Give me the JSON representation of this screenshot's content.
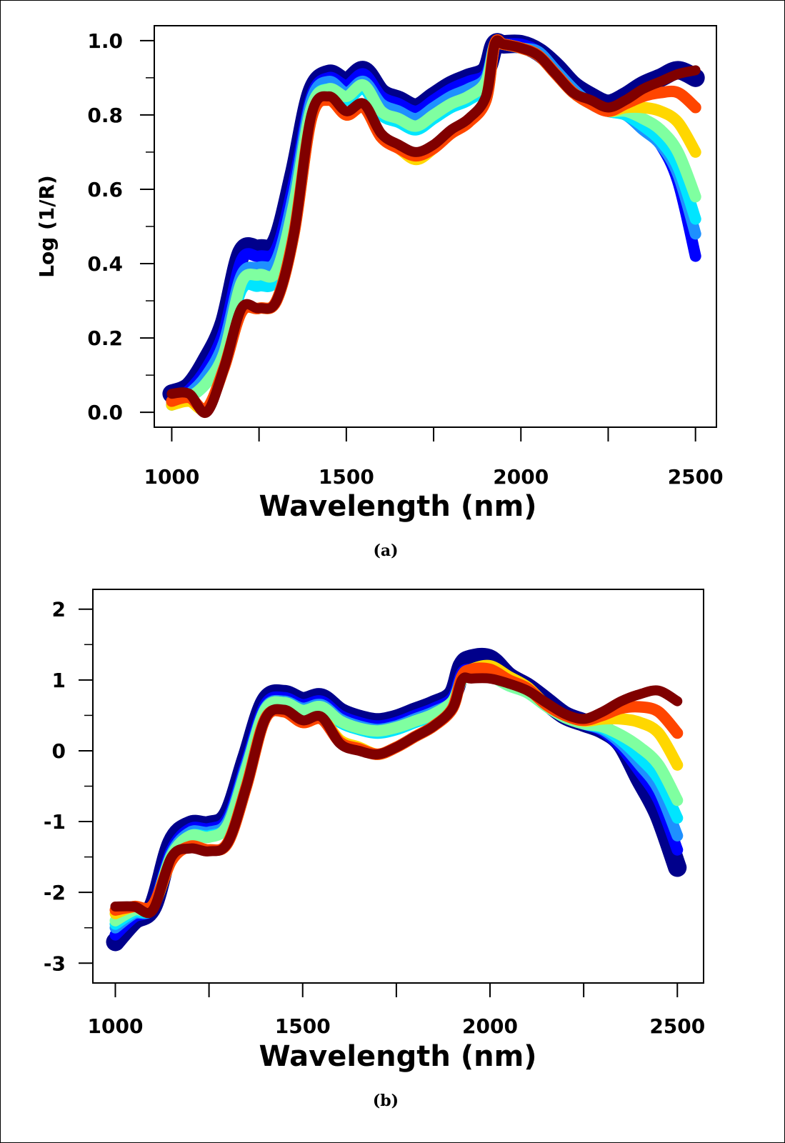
{
  "chart_data": [
    {
      "type": "line",
      "caption": "(a)",
      "xlabel": "Wavelength (nm)",
      "ylabel": "Log (1/R)",
      "xlim": [
        950,
        2560
      ],
      "ylim": [
        -0.04,
        1.04
      ],
      "xticks": [
        "1000",
        "1500",
        "2000",
        "2500"
      ],
      "yticks": [
        "0.0",
        "0.2",
        "0.4",
        "0.6",
        "0.8",
        "1.0"
      ],
      "ytick_values": [
        0,
        0.2,
        0.4,
        0.6,
        0.8,
        1.0
      ],
      "x": [
        1000,
        1050,
        1100,
        1150,
        1200,
        1250,
        1300,
        1350,
        1400,
        1450,
        1500,
        1550,
        1600,
        1650,
        1700,
        1750,
        1800,
        1850,
        1900,
        1925,
        1950,
        2000,
        2050,
        2100,
        2150,
        2200,
        2250,
        2300,
        2350,
        2400,
        2450,
        2500
      ],
      "series": [
        {
          "color": "#00008b",
          "values": [
            0.05,
            0.07,
            0.14,
            0.24,
            0.43,
            0.44,
            0.46,
            0.64,
            0.86,
            0.91,
            0.89,
            0.92,
            0.86,
            0.84,
            0.82,
            0.85,
            0.88,
            0.9,
            0.92,
            0.99,
            0.99,
            0.99,
            0.97,
            0.93,
            0.88,
            0.85,
            0.83,
            0.85,
            0.88,
            0.9,
            0.92,
            0.9
          ]
        },
        {
          "color": "#0000ff",
          "values": [
            0.03,
            0.06,
            0.12,
            0.22,
            0.41,
            0.42,
            0.44,
            0.62,
            0.85,
            0.9,
            0.88,
            0.91,
            0.85,
            0.83,
            0.81,
            0.84,
            0.87,
            0.89,
            0.91,
            0.99,
            0.99,
            0.99,
            0.97,
            0.92,
            0.87,
            0.83,
            0.81,
            0.81,
            0.77,
            0.72,
            0.62,
            0.42
          ]
        },
        {
          "color": "#1e90ff",
          "values": [
            0.02,
            0.05,
            0.1,
            0.19,
            0.37,
            0.39,
            0.41,
            0.59,
            0.84,
            0.89,
            0.86,
            0.89,
            0.83,
            0.81,
            0.79,
            0.82,
            0.85,
            0.87,
            0.9,
            0.99,
            0.99,
            0.98,
            0.97,
            0.92,
            0.87,
            0.83,
            0.81,
            0.8,
            0.76,
            0.72,
            0.64,
            0.48
          ]
        },
        {
          "color": "#00e5ff",
          "values": [
            0.02,
            0.04,
            0.08,
            0.16,
            0.33,
            0.34,
            0.36,
            0.55,
            0.82,
            0.87,
            0.84,
            0.87,
            0.8,
            0.78,
            0.76,
            0.79,
            0.82,
            0.84,
            0.88,
            0.99,
            0.99,
            0.98,
            0.96,
            0.91,
            0.86,
            0.83,
            0.81,
            0.8,
            0.77,
            0.73,
            0.66,
            0.52
          ]
        },
        {
          "color": "#7fffa0",
          "values": [
            0.02,
            0.04,
            0.08,
            0.16,
            0.35,
            0.37,
            0.38,
            0.56,
            0.82,
            0.87,
            0.85,
            0.88,
            0.81,
            0.79,
            0.77,
            0.8,
            0.83,
            0.85,
            0.89,
            0.99,
            0.99,
            0.98,
            0.96,
            0.91,
            0.86,
            0.83,
            0.81,
            0.81,
            0.79,
            0.76,
            0.7,
            0.58
          ]
        },
        {
          "color": "#ffd700",
          "values": [
            0.02,
            0.03,
            0.01,
            0.12,
            0.27,
            0.28,
            0.3,
            0.48,
            0.79,
            0.84,
            0.8,
            0.82,
            0.74,
            0.71,
            0.68,
            0.71,
            0.75,
            0.78,
            0.84,
            0.99,
            0.99,
            0.98,
            0.96,
            0.91,
            0.86,
            0.83,
            0.81,
            0.82,
            0.82,
            0.81,
            0.78,
            0.7
          ]
        },
        {
          "color": "#ff4500",
          "values": [
            0.03,
            0.04,
            0.01,
            0.12,
            0.27,
            0.28,
            0.3,
            0.48,
            0.79,
            0.84,
            0.8,
            0.82,
            0.74,
            0.71,
            0.69,
            0.71,
            0.75,
            0.78,
            0.84,
            0.99,
            0.99,
            0.98,
            0.96,
            0.91,
            0.86,
            0.83,
            0.81,
            0.83,
            0.85,
            0.86,
            0.86,
            0.82
          ]
        },
        {
          "color": "#800000",
          "values": [
            0.05,
            0.05,
            0.0,
            0.12,
            0.28,
            0.28,
            0.3,
            0.48,
            0.8,
            0.85,
            0.81,
            0.83,
            0.75,
            0.72,
            0.7,
            0.72,
            0.76,
            0.79,
            0.85,
            0.99,
            0.99,
            0.98,
            0.96,
            0.91,
            0.86,
            0.84,
            0.82,
            0.84,
            0.87,
            0.89,
            0.91,
            0.92
          ]
        }
      ]
    },
    {
      "type": "line",
      "caption": "(b)",
      "xlabel": "Wavelength  (nm)",
      "ylabel": "",
      "xlim": [
        940,
        2570
      ],
      "ylim": [
        -3.28,
        2.28
      ],
      "xticks": [
        "1000",
        "1500",
        "2000",
        "2500"
      ],
      "yticks": [
        "2",
        "1",
        "0",
        "-1",
        "-2",
        "-3"
      ],
      "ytick_values": [
        2,
        1,
        0,
        -1,
        -2,
        -3
      ],
      "x": [
        1000,
        1050,
        1100,
        1150,
        1200,
        1250,
        1300,
        1350,
        1400,
        1450,
        1500,
        1550,
        1600,
        1650,
        1700,
        1750,
        1800,
        1850,
        1900,
        1925,
        1950,
        2000,
        2050,
        2100,
        2150,
        2200,
        2250,
        2300,
        2350,
        2400,
        2450,
        2500
      ],
      "series": [
        {
          "color": "#00008b",
          "values": [
            -2.7,
            -2.4,
            -2.2,
            -1.3,
            -1.05,
            -1.05,
            -0.9,
            -0.1,
            0.7,
            0.8,
            0.7,
            0.75,
            0.55,
            0.45,
            0.4,
            0.45,
            0.55,
            0.65,
            0.8,
            1.2,
            1.3,
            1.3,
            1.05,
            0.9,
            0.7,
            0.5,
            0.4,
            0.3,
            0.1,
            -0.4,
            -0.9,
            -1.65
          ]
        },
        {
          "color": "#0000ff",
          "values": [
            -2.6,
            -2.35,
            -2.2,
            -1.4,
            -1.1,
            -1.1,
            -0.95,
            -0.15,
            0.65,
            0.75,
            0.65,
            0.7,
            0.5,
            0.4,
            0.35,
            0.4,
            0.5,
            0.6,
            0.75,
            1.1,
            1.15,
            1.15,
            0.95,
            0.85,
            0.65,
            0.48,
            0.38,
            0.28,
            0.05,
            -0.3,
            -0.7,
            -1.4
          ]
        },
        {
          "color": "#1e90ff",
          "values": [
            -2.5,
            -2.3,
            -2.22,
            -1.45,
            -1.15,
            -1.15,
            -1.0,
            -0.2,
            0.6,
            0.7,
            0.6,
            0.65,
            0.45,
            0.35,
            0.3,
            0.35,
            0.45,
            0.55,
            0.7,
            1.05,
            1.1,
            1.1,
            0.95,
            0.85,
            0.65,
            0.48,
            0.38,
            0.3,
            0.1,
            -0.2,
            -0.55,
            -1.2
          ]
        },
        {
          "color": "#00e5ff",
          "values": [
            -2.45,
            -2.28,
            -2.22,
            -1.48,
            -1.2,
            -1.2,
            -1.05,
            -0.25,
            0.58,
            0.68,
            0.57,
            0.62,
            0.4,
            0.3,
            0.25,
            0.3,
            0.4,
            0.5,
            0.68,
            1.0,
            1.05,
            1.05,
            0.92,
            0.82,
            0.63,
            0.47,
            0.38,
            0.32,
            0.15,
            -0.1,
            -0.4,
            -0.95
          ]
        },
        {
          "color": "#7fffa0",
          "values": [
            -2.4,
            -2.25,
            -2.2,
            -1.48,
            -1.2,
            -1.22,
            -1.05,
            -0.25,
            0.58,
            0.68,
            0.57,
            0.62,
            0.42,
            0.32,
            0.28,
            0.33,
            0.42,
            0.52,
            0.7,
            1.0,
            1.05,
            1.05,
            0.92,
            0.82,
            0.63,
            0.47,
            0.38,
            0.34,
            0.22,
            0.05,
            -0.2,
            -0.7
          ]
        },
        {
          "color": "#ffd700",
          "values": [
            -2.3,
            -2.2,
            -2.2,
            -1.55,
            -1.35,
            -1.4,
            -1.3,
            -0.5,
            0.45,
            0.55,
            0.4,
            0.45,
            0.15,
            0.05,
            -0.05,
            0.05,
            0.2,
            0.35,
            0.6,
            1.05,
            1.15,
            1.2,
            1.05,
            0.9,
            0.65,
            0.5,
            0.42,
            0.45,
            0.45,
            0.4,
            0.25,
            -0.2
          ]
        },
        {
          "color": "#ff4500",
          "values": [
            -2.25,
            -2.2,
            -2.18,
            -1.55,
            -1.35,
            -1.4,
            -1.3,
            -0.5,
            0.45,
            0.55,
            0.4,
            0.45,
            0.12,
            0.03,
            -0.05,
            0.05,
            0.2,
            0.35,
            0.6,
            1.05,
            1.15,
            1.15,
            1.0,
            0.88,
            0.65,
            0.5,
            0.43,
            0.5,
            0.6,
            0.62,
            0.55,
            0.25
          ]
        },
        {
          "color": "#800000",
          "values": [
            -2.2,
            -2.2,
            -2.25,
            -1.5,
            -1.38,
            -1.42,
            -1.3,
            -0.5,
            0.45,
            0.58,
            0.43,
            0.48,
            0.1,
            0.0,
            -0.05,
            0.05,
            0.2,
            0.35,
            0.6,
            1.0,
            1.02,
            1.02,
            0.95,
            0.85,
            0.68,
            0.52,
            0.45,
            0.55,
            0.7,
            0.8,
            0.85,
            0.7
          ]
        }
      ]
    }
  ]
}
